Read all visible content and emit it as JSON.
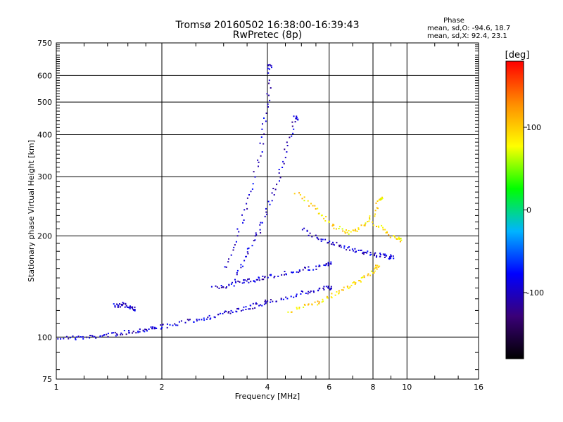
{
  "chart_data": {
    "type": "scatter",
    "title": "Tromsø 20160502 16:38:00-16:39:43",
    "subtitle": "RwPretec (8p)",
    "xlabel": "Frequency [MHz]",
    "ylabel": "Stationary phase Virtual Height [km]",
    "x_scale": "log",
    "y_scale": "log",
    "xlim": [
      1,
      16
    ],
    "ylim": [
      75,
      750
    ],
    "x_ticks": [
      "1",
      "2",
      "4",
      "6",
      "8",
      "10",
      "16"
    ],
    "y_ticks": [
      "75",
      "100",
      "200",
      "300",
      "400",
      "500",
      "600",
      "750"
    ],
    "grid": true,
    "phase_box": {
      "heading": "Phase",
      "line_o": "mean, sd,O: -94.6, 18.7",
      "line_x": "mean, sd,X:  92.4, 23.1"
    },
    "colorbar": {
      "label": "[deg]",
      "ticks": [
        "100",
        "0",
        "-100"
      ],
      "tick_values": [
        100,
        0,
        -100
      ],
      "range": [
        -180,
        180
      ],
      "colors": [
        "#000000",
        "#3a0078",
        "#0000ff",
        "#00b4ff",
        "#00ff00",
        "#ffff00",
        "#ff8c00",
        "#ff0000"
      ]
    },
    "series": [
      {
        "label_note": "O-mode echoes (blue)",
        "phase": -95,
        "traces": [
          {
            "x": [
              1.0,
              1.1,
              1.2,
              1.3,
              1.4,
              1.5,
              1.6,
              1.7,
              1.8,
              1.9,
              2.0,
              2.2,
              2.4,
              2.6,
              2.8,
              3.0,
              3.2,
              3.4,
              3.6,
              3.8,
              4.0,
              4.4,
              4.8,
              5.2,
              5.6,
              6.0
            ],
            "y": [
              100,
              100,
              100,
              101,
              102,
              103,
              104,
              105,
              106,
              107,
              108,
              110,
              112,
              114,
              116,
              118,
              120,
              122,
              124,
              126,
              128,
              131,
              134,
              137,
              139,
              141
            ]
          },
          {
            "x": [
              3.0,
              3.2,
              3.4,
              3.6,
              3.8,
              3.9,
              4.0,
              4.05
            ],
            "y": [
              160,
              190,
              230,
              280,
              350,
              430,
              520,
              640
            ]
          },
          {
            "x": [
              3.2,
              3.4,
              3.6,
              3.8,
              4.0,
              4.2,
              4.4,
              4.6,
              4.8
            ],
            "y": [
              150,
              170,
              190,
              210,
              240,
              280,
              330,
              390,
              450
            ]
          },
          {
            "x": [
              2.8,
              3.0,
              3.2,
              3.4,
              3.6,
              3.8,
              4.0,
              4.4,
              4.8,
              5.2,
              5.6,
              6.0
            ],
            "y": [
              140,
              142,
              145,
              147,
              148,
              150,
              152,
              155,
              158,
              160,
              163,
              166
            ]
          },
          {
            "x": [
              5.0,
              5.4,
              5.8,
              6.2,
              6.6,
              7.0,
              7.4,
              7.8,
              8.2,
              8.6,
              9.0
            ],
            "y": [
              210,
              200,
              195,
              190,
              185,
              182,
              180,
              178,
              176,
              175,
              174
            ]
          },
          {
            "x": [
              1.45,
              1.5,
              1.55,
              1.6,
              1.65
            ],
            "y": [
              125,
              124,
              126,
              123,
              122
            ]
          }
        ]
      },
      {
        "label_note": "X-mode echoes (yellow)",
        "phase": 92,
        "traces": [
          {
            "x": [
              4.6,
              5.0,
              5.4,
              5.8,
              6.2,
              6.6,
              7.0,
              7.4,
              7.8,
              8.2
            ],
            "y": [
              120,
              123,
              126,
              130,
              135,
              140,
              145,
              150,
              156,
              162
            ]
          },
          {
            "x": [
              4.8,
              5.2,
              5.6,
              6.0,
              6.4,
              6.8,
              7.2,
              7.6,
              8.0,
              8.4
            ],
            "y": [
              270,
              250,
              235,
              220,
              210,
              205,
              210,
              220,
              235,
              260
            ]
          },
          {
            "x": [
              8.0,
              8.5,
              9.0,
              9.5
            ],
            "y": [
              220,
              210,
              200,
              195
            ]
          }
        ]
      }
    ]
  }
}
